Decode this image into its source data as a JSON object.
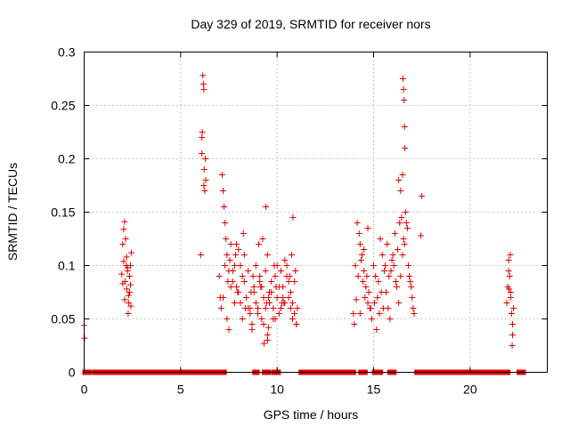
{
  "chart_data": {
    "type": "scatter",
    "title": "Day 329 of 2019, SRMTID for receiver nors",
    "xlabel": "GPS time / hours",
    "ylabel": "SRMTID / TECUs",
    "xlim": [
      0,
      24
    ],
    "ylim": [
      0,
      0.3
    ],
    "xticks": [
      0,
      5,
      10,
      15,
      20
    ],
    "xtick_labels": [
      "0",
      "5",
      "10",
      "15",
      "20"
    ],
    "yticks": [
      0,
      0.05,
      0.1,
      0.15,
      0.2,
      0.25,
      0.3
    ],
    "ytick_labels": [
      "0",
      "0.05",
      "0.1",
      "0.15",
      "0.2",
      "0.25",
      "0.3"
    ],
    "grid": true,
    "legend": "none",
    "marker": "+",
    "color": "#e00000",
    "series": [
      {
        "name": "SRMTID",
        "x": [
          0.0,
          0.02,
          1.95,
          2.0,
          2.05,
          2.1,
          2.12,
          2.18,
          2.2,
          2.25,
          2.3,
          2.35,
          2.4,
          2.45,
          2.0,
          2.1,
          2.2,
          2.3,
          2.4,
          2.15,
          2.25,
          2.35,
          2.05,
          2.28,
          2.42,
          6.05,
          6.1,
          6.12,
          6.15,
          6.18,
          6.2,
          6.22,
          6.25,
          6.3,
          6.1,
          6.2,
          6.28,
          7.15,
          7.2,
          7.25,
          7.3,
          7.35,
          7.4,
          7.5,
          7.6,
          7.7,
          7.8,
          7.9,
          8.0,
          8.1,
          8.2,
          8.3,
          8.4,
          8.5,
          8.6,
          8.7,
          8.8,
          8.9,
          9.0,
          9.1,
          9.2,
          9.3,
          9.4,
          9.5,
          9.6,
          9.7,
          9.8,
          9.9,
          10.0,
          10.1,
          10.2,
          10.3,
          10.4,
          10.5,
          10.6,
          10.7,
          10.8,
          10.9,
          11.0,
          7.0,
          7.1,
          7.2,
          7.3,
          7.4,
          7.5,
          7.6,
          7.7,
          7.8,
          7.9,
          8.0,
          8.1,
          8.2,
          8.3,
          8.4,
          8.5,
          8.6,
          8.7,
          8.8,
          8.9,
          9.0,
          9.1,
          9.2,
          9.3,
          9.4,
          9.5,
          9.6,
          9.7,
          9.8,
          9.9,
          10.0,
          10.1,
          10.2,
          10.3,
          10.4,
          10.5,
          10.6,
          10.7,
          10.8,
          10.9,
          11.0,
          7.05,
          7.45,
          7.85,
          8.25,
          8.65,
          9.05,
          9.45,
          9.85,
          10.25,
          10.65,
          11.05,
          7.55,
          7.95,
          8.35,
          8.75,
          9.15,
          9.55,
          9.95,
          10.35,
          10.75,
          9.25,
          9.32,
          9.5,
          9.55,
          9.42,
          10.82,
          10.95,
          13.95,
          14.0,
          14.1,
          14.2,
          14.3,
          14.4,
          14.5,
          14.6,
          14.7,
          14.8,
          14.9,
          14.05,
          14.15,
          14.25,
          14.35,
          14.45,
          14.55,
          14.65,
          14.75,
          14.85,
          14.3,
          14.5,
          14.7,
          15.0,
          15.1,
          15.2,
          15.3,
          15.4,
          15.5,
          15.6,
          15.7,
          15.8,
          15.9,
          16.0,
          16.1,
          16.2,
          16.3,
          16.4,
          16.5,
          16.6,
          16.7,
          16.8,
          16.9,
          17.0,
          17.1,
          15.05,
          15.15,
          15.25,
          15.35,
          15.45,
          15.55,
          15.65,
          15.75,
          15.85,
          15.95,
          16.05,
          16.15,
          16.25,
          16.35,
          16.45,
          16.55,
          16.65,
          16.75,
          16.85,
          16.95,
          17.05,
          16.52,
          16.55,
          16.58,
          16.6,
          16.62,
          16.5,
          16.3,
          16.4,
          17.5,
          17.45,
          21.9,
          21.95,
          22.0,
          22.05,
          22.1,
          22.15,
          22.2,
          22.25,
          22.0,
          22.1,
          22.2,
          22.08,
          22.18,
          22.02
        ],
        "y": [
          0.044,
          0.032,
          0.092,
          0.12,
          0.134,
          0.141,
          0.085,
          0.1,
          0.078,
          0.095,
          0.072,
          0.09,
          0.1,
          0.112,
          0.083,
          0.068,
          0.108,
          0.065,
          0.082,
          0.125,
          0.098,
          0.075,
          0.104,
          0.055,
          0.062,
          0.11,
          0.205,
          0.225,
          0.278,
          0.27,
          0.265,
          0.19,
          0.17,
          0.18,
          0.22,
          0.175,
          0.2,
          0.185,
          0.17,
          0.155,
          0.14,
          0.125,
          0.11,
          0.095,
          0.08,
          0.085,
          0.1,
          0.12,
          0.075,
          0.065,
          0.09,
          0.11,
          0.07,
          0.06,
          0.055,
          0.045,
          0.08,
          0.1,
          0.06,
          0.085,
          0.05,
          0.07,
          0.095,
          0.11,
          0.065,
          0.075,
          0.05,
          0.09,
          0.1,
          0.08,
          0.06,
          0.07,
          0.105,
          0.09,
          0.07,
          0.06,
          0.05,
          0.085,
          0.045,
          0.09,
          0.06,
          0.07,
          0.1,
          0.05,
          0.04,
          0.12,
          0.095,
          0.065,
          0.08,
          0.115,
          0.1,
          0.05,
          0.085,
          0.07,
          0.095,
          0.06,
          0.04,
          0.075,
          0.065,
          0.055,
          0.09,
          0.08,
          0.045,
          0.06,
          0.035,
          0.075,
          0.085,
          0.06,
          0.05,
          0.07,
          0.055,
          0.095,
          0.08,
          0.065,
          0.1,
          0.085,
          0.075,
          0.065,
          0.055,
          0.045,
          0.07,
          0.085,
          0.11,
          0.13,
          0.075,
          0.12,
          0.065,
          0.1,
          0.065,
          0.09,
          0.06,
          0.105,
          0.075,
          0.06,
          0.09,
          0.08,
          0.07,
          0.08,
          0.065,
          0.11,
          0.125,
          0.027,
          0.03,
          0.042,
          0.155,
          0.145,
          0.095,
          0.055,
          0.045,
          0.068,
          0.09,
          0.12,
          0.11,
          0.095,
          0.08,
          0.065,
          0.06,
          0.05,
          0.1,
          0.14,
          0.13,
          0.105,
          0.085,
          0.07,
          0.09,
          0.075,
          0.06,
          0.055,
          0.115,
          0.135,
          0.1,
          0.09,
          0.07,
          0.055,
          0.075,
          0.06,
          0.1,
          0.12,
          0.09,
          0.095,
          0.11,
          0.13,
          0.08,
          0.065,
          0.09,
          0.11,
          0.12,
          0.14,
          0.1,
          0.085,
          0.07,
          0.055,
          0.065,
          0.04,
          0.085,
          0.125,
          0.11,
          0.095,
          0.075,
          0.06,
          0.05,
          0.105,
          0.1,
          0.085,
          0.115,
          0.14,
          0.145,
          0.125,
          0.15,
          0.135,
          0.09,
          0.08,
          0.06,
          0.275,
          0.265,
          0.255,
          0.23,
          0.21,
          0.185,
          0.18,
          0.17,
          0.165,
          0.128,
          0.065,
          0.08,
          0.105,
          0.09,
          0.07,
          0.055,
          0.045,
          0.06,
          0.095,
          0.075,
          0.035,
          0.11,
          0.025,
          0.078
        ]
      },
      {
        "name": "SRMTID (zero values)",
        "x_ranges": [
          [
            0.0,
            0.3
          ],
          [
            0.5,
            0.6
          ],
          [
            0.6,
            1.8
          ],
          [
            1.9,
            4.2
          ],
          [
            4.2,
            6.3
          ],
          [
            6.4,
            7.3
          ],
          [
            8.8,
            9.0
          ],
          [
            9.3,
            9.6
          ],
          [
            9.8,
            10.1
          ],
          [
            11.2,
            14.0
          ],
          [
            14.3,
            14.6
          ],
          [
            15.0,
            15.4
          ],
          [
            15.8,
            16.1
          ],
          [
            17.2,
            22.0
          ],
          [
            22.5,
            22.8
          ]
        ],
        "y": 0
      }
    ]
  }
}
